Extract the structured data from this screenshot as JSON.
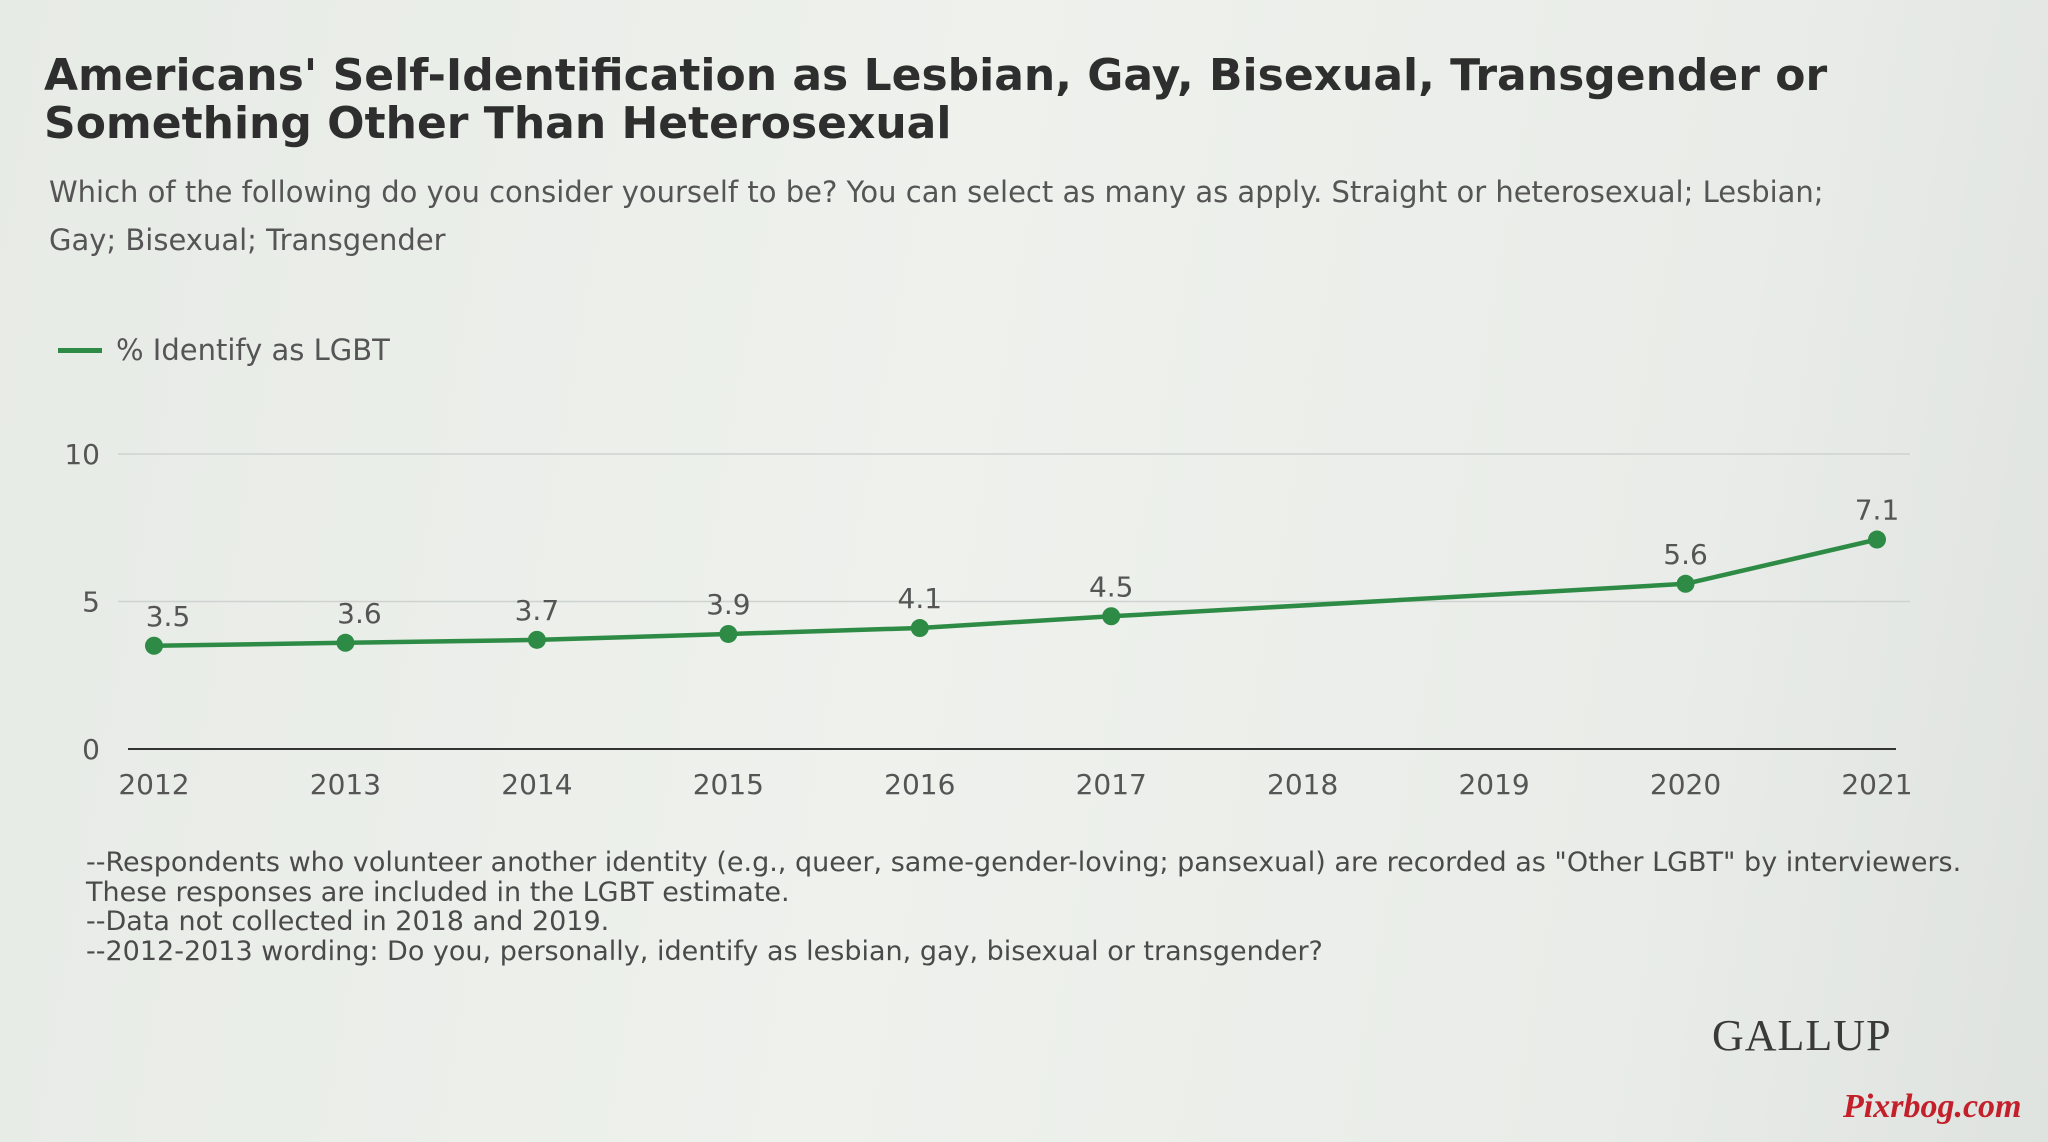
{
  "header": {
    "title": "Americans' Self-Identification as Lesbian, Gay, Bisexual, Transgender or Something Other Than Heterosexual",
    "subtitle": "Which of the following do you consider yourself to be? You can select as many as apply. Straight or heterosexual; Lesbian; Gay; Bisexual; Transgender"
  },
  "legend": {
    "label": "% Identify as LGBT"
  },
  "chart_data": {
    "type": "line",
    "x": [
      "2012",
      "2013",
      "2014",
      "2015",
      "2016",
      "2017",
      "2018",
      "2019",
      "2020",
      "2021"
    ],
    "series": [
      {
        "name": "% Identify as LGBT",
        "color": "#2e8b45",
        "points": [
          {
            "x": "2012",
            "y": 3.5,
            "label": "3.5"
          },
          {
            "x": "2013",
            "y": 3.6,
            "label": "3.6"
          },
          {
            "x": "2014",
            "y": 3.7,
            "label": "3.7"
          },
          {
            "x": "2015",
            "y": 3.9,
            "label": "3.9"
          },
          {
            "x": "2016",
            "y": 4.1,
            "label": "4.1"
          },
          {
            "x": "2017",
            "y": 4.5,
            "label": "4.5"
          },
          {
            "x": "2020",
            "y": 5.6,
            "label": "5.6"
          },
          {
            "x": "2021",
            "y": 7.1,
            "label": "7.1"
          }
        ]
      }
    ],
    "yticks": [
      "0",
      "5",
      "10"
    ],
    "ylim": [
      0,
      10
    ],
    "grid": true,
    "legend_position": "top-left"
  },
  "notes": [
    "--Respondents who volunteer another identity (e.g., queer, same-gender-loving; pansexual) are recorded as \"Other LGBT\" by interviewers. These responses are included in the LGBT estimate.",
    "--Data not collected in 2018 and 2019.",
    "--2012-2013 wording: Do you, personally, identify as lesbian, gay, bisexual or transgender?"
  ],
  "branding": {
    "logo": "GALLUP",
    "watermark": "Pixrbog.com"
  }
}
